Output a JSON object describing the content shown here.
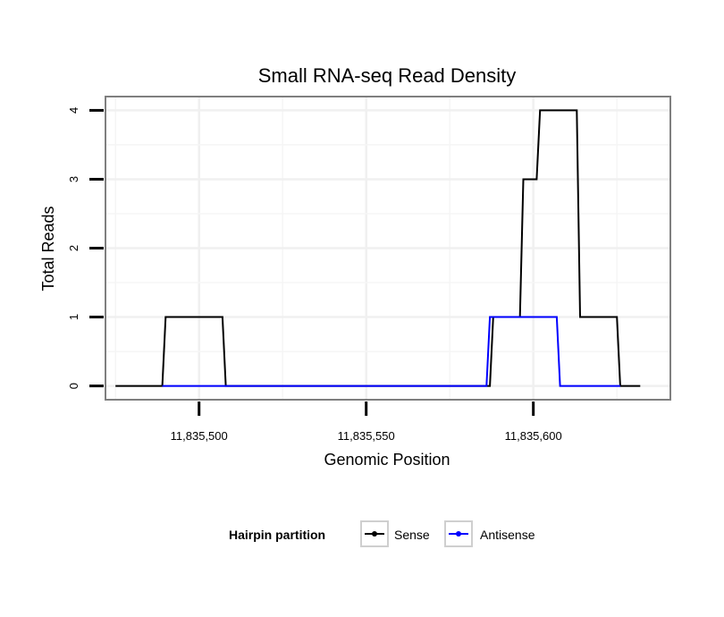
{
  "chart_data": {
    "type": "line",
    "title": "Small RNA-seq Read Density",
    "xlabel": "Genomic Position",
    "ylabel": "Total Reads",
    "xlim": [
      11835472,
      11835641
    ],
    "ylim": [
      -0.2,
      4.2
    ],
    "x_ticks": [
      11835500,
      11835550,
      11835600
    ],
    "x_tick_labels": [
      "11,835,500",
      "11,835,550",
      "11,835,600"
    ],
    "y_ticks": [
      0,
      1,
      2,
      3,
      4
    ],
    "y_tick_labels": [
      "0",
      "1",
      "2",
      "3",
      "4"
    ],
    "grid": true,
    "legend": {
      "title": "Hairpin partition",
      "position": "bottom"
    },
    "series": [
      {
        "name": "Sense",
        "color": "#000000",
        "points": [
          [
            11835475,
            0
          ],
          [
            11835489,
            0
          ],
          [
            11835490,
            1
          ],
          [
            11835507,
            1
          ],
          [
            11835508,
            0
          ],
          [
            11835587,
            0
          ],
          [
            11835588,
            1
          ],
          [
            11835596,
            1
          ],
          [
            11835597,
            3
          ],
          [
            11835601,
            3
          ],
          [
            11835602,
            4
          ],
          [
            11835613,
            4
          ],
          [
            11835614,
            1
          ],
          [
            11835625,
            1
          ],
          [
            11835626,
            0
          ],
          [
            11835632,
            0
          ]
        ]
      },
      {
        "name": "Antisense",
        "color": "#0000ff",
        "points": [
          [
            11835489,
            0
          ],
          [
            11835508,
            0
          ],
          [
            11835586,
            0
          ],
          [
            11835587,
            1
          ],
          [
            11835607,
            1
          ],
          [
            11835608,
            0
          ],
          [
            11835626,
            0
          ]
        ]
      }
    ]
  }
}
